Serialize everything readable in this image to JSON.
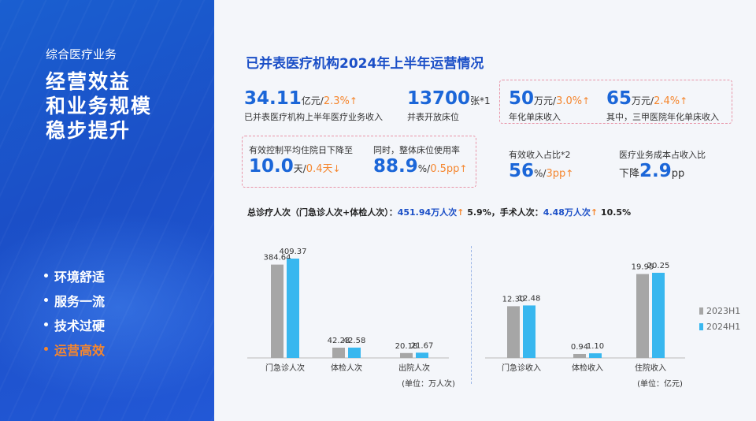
{
  "left_panel": {
    "subtitle": "综合医疗业务",
    "headline": [
      "经营效益",
      "和业务规模",
      "稳步提升"
    ],
    "bullets": [
      "环境舒适",
      "服务一流",
      "技术过硬",
      "运营高效"
    ],
    "highlight_color": "#f5862e"
  },
  "title": "已并表医疗机构2024年上半年运营情况",
  "kpis": {
    "revenue": {
      "value": "34.11",
      "unit": "亿元/",
      "change": "2.3%",
      "arrow": "↑",
      "desc": "已并表医疗机构上半年医疗业务收入"
    },
    "beds": {
      "value": "13700",
      "unit": "张*1",
      "desc": "并表开放床位"
    },
    "bed_income": {
      "value": "50",
      "unit": "万元/",
      "change": "3.0%",
      "arrow": "↑",
      "desc": "年化单床收入"
    },
    "tier3_bed_income": {
      "value": "65",
      "unit": "万元/",
      "change": "2.4%",
      "arrow": "↑",
      "desc": "其中，三甲医院年化单床收入"
    },
    "stay": {
      "label1": "有效控制平均住院日下降至",
      "value": "10.0",
      "unit": "天/",
      "change": "0.4天",
      "arrow": "↓"
    },
    "usage": {
      "label1": "同时，整体床位使用率",
      "value": "88.9",
      "unit": "%/",
      "change": "0.5pp",
      "arrow": "↑"
    },
    "effective": {
      "label": "有效收入占比*2",
      "value": "56",
      "unit": "%/",
      "change": "3pp",
      "arrow": "↑"
    },
    "cost": {
      "label": "医疗业务成本占收入比",
      "prefix": "下降",
      "value": "2.9",
      "unit": "pp"
    }
  },
  "summary": {
    "part1": "总诊疗人次（门急诊人次+体检人次）：",
    "visits": "451.94万人次",
    "arrow": "↑",
    "pct1": " 5.9%，手术人次：",
    "surgery": "4.48万人次",
    "pct2": " 10.5%"
  },
  "legend": {
    "h2023": "2023H1",
    "h2024": "2024H1",
    "color_2023": "#a6a6a6",
    "color_2024": "#38b7ef"
  },
  "chart_data": [
    {
      "type": "bar",
      "categories": [
        "门急诊人次",
        "体检人次",
        "出院人次"
      ],
      "series": [
        {
          "name": "2023H1",
          "values": [
            384.64,
            42.23,
            20.18
          ]
        },
        {
          "name": "2024H1",
          "values": [
            409.37,
            42.58,
            21.67
          ]
        }
      ],
      "unit_label": "(单位：万人次)"
    },
    {
      "type": "bar",
      "categories": [
        "门急诊收入",
        "体检收入",
        "住院收入"
      ],
      "series": [
        {
          "name": "2023H1",
          "values": [
            12.3,
            0.94,
            19.95
          ]
        },
        {
          "name": "2024H1",
          "values": [
            12.48,
            1.1,
            20.25
          ]
        }
      ],
      "unit_label": "(单位：亿元)"
    }
  ]
}
